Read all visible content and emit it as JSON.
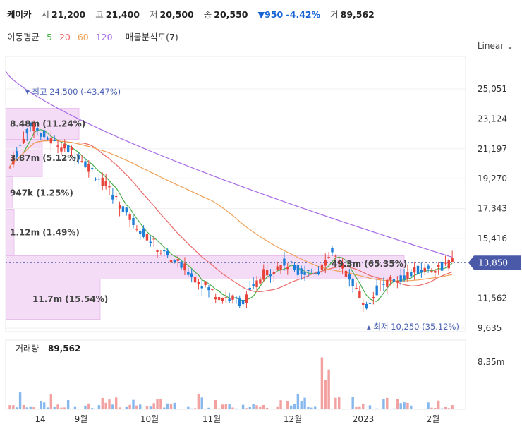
{
  "header": {
    "name": "케이카",
    "open_label": "시",
    "open": "21,200",
    "high_label": "고",
    "high": "21,400",
    "low_label": "저",
    "low": "20,500",
    "close_label": "종",
    "close": "20,550",
    "change": "▼950 -4.42%",
    "volume_label": "거",
    "volume": "89,562"
  },
  "ma_legend": {
    "title": "이동평균",
    "periods": [
      "5",
      "20",
      "60",
      "120"
    ],
    "vp_label": "매물분석도(7)"
  },
  "scale_button": "Linear",
  "colors": {
    "up": "#e8433b",
    "down": "#1c7ed6",
    "ma5": "#49b04a",
    "ma20": "#ec6a6a",
    "ma60": "#f0a055",
    "ma120": "#a66ae6",
    "vp": "#f4dcf6",
    "current_tag": "#4a5aa8"
  },
  "chart_data": {
    "type": "candlestick",
    "price_axis": [
      "25,051",
      "23,124",
      "21,197",
      "19,270",
      "17,343",
      "15,416",
      "13,850",
      "11,562",
      "9,635"
    ],
    "price_range": [
      9635,
      25051
    ],
    "current_price": "13,850",
    "x_labels": [
      "14",
      "9월",
      "10월",
      "11월",
      "12월",
      "2023",
      "2월"
    ],
    "high_marker": "최고 24,500 (-43.47%)",
    "low_marker": "최저 10,250 (35.12%)",
    "volume_profile": [
      {
        "label": "8.48m (11.24%)",
        "from": 21800,
        "to": 23800
      },
      {
        "label": "3.87m (5.12%)",
        "from": 19400,
        "to": 21800
      },
      {
        "label": "947k (1.25%)",
        "from": 17300,
        "to": 19400
      },
      {
        "label": "1.12m (1.49%)",
        "from": 14300,
        "to": 17300
      },
      {
        "label": "49.3m (65.35%)",
        "from": 12800,
        "to": 14300
      },
      {
        "label": "11.7m (15.54%)",
        "from": 10200,
        "to": 12800
      }
    ],
    "volume_title": "거래량",
    "volume_value": "89,562",
    "volume_axis_label": "8.35m",
    "volume_max": 8350000
  }
}
